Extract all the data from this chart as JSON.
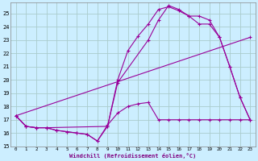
{
  "background_color": "#cceeff",
  "grid_color": "#aacccc",
  "line_color": "#990099",
  "xlabel": "Windchill (Refroidissement éolien,°C)",
  "xlim": [
    -0.5,
    23.5
  ],
  "ylim": [
    15,
    25.8
  ],
  "yticks": [
    15,
    16,
    17,
    18,
    19,
    20,
    21,
    22,
    23,
    24,
    25
  ],
  "xticks": [
    0,
    1,
    2,
    3,
    4,
    5,
    6,
    7,
    8,
    9,
    10,
    11,
    12,
    13,
    14,
    15,
    16,
    17,
    18,
    19,
    20,
    21,
    22,
    23
  ],
  "line1_x": [
    0,
    1,
    2,
    3,
    4,
    5,
    6,
    7,
    8,
    9,
    10,
    11,
    12,
    13,
    14,
    15,
    16,
    17,
    18,
    19,
    20,
    21,
    22,
    23
  ],
  "line1_y": [
    17.3,
    16.5,
    16.4,
    16.4,
    16.2,
    16.1,
    16.0,
    15.9,
    15.4,
    16.6,
    17.5,
    18.0,
    18.2,
    18.3,
    17.0,
    17.0,
    17.0,
    17.0,
    17.0,
    17.0,
    17.0,
    17.0,
    17.0,
    17.0
  ],
  "line2_x": [
    0,
    1,
    2,
    3,
    4,
    5,
    6,
    7,
    8,
    9,
    10,
    11,
    12,
    13,
    14,
    15,
    16,
    17,
    18,
    19,
    20,
    21,
    22,
    23
  ],
  "line2_y": [
    17.3,
    16.5,
    16.4,
    16.4,
    16.2,
    16.1,
    16.0,
    15.9,
    15.4,
    16.5,
    20.0,
    22.2,
    23.3,
    24.2,
    25.3,
    25.5,
    25.2,
    24.8,
    24.2,
    24.2,
    23.2,
    21.0,
    18.7,
    17.0
  ],
  "line3_x": [
    0,
    1,
    2,
    3,
    9,
    10,
    13,
    14,
    15,
    16,
    17,
    18,
    19,
    20,
    21,
    22,
    23
  ],
  "line3_y": [
    17.3,
    16.5,
    16.4,
    16.4,
    16.5,
    19.8,
    23.0,
    24.5,
    25.6,
    25.3,
    24.8,
    24.8,
    24.5,
    23.2,
    21.0,
    18.7,
    17.0
  ],
  "line4_x": [
    0,
    23
  ],
  "line4_y": [
    17.3,
    23.2
  ]
}
